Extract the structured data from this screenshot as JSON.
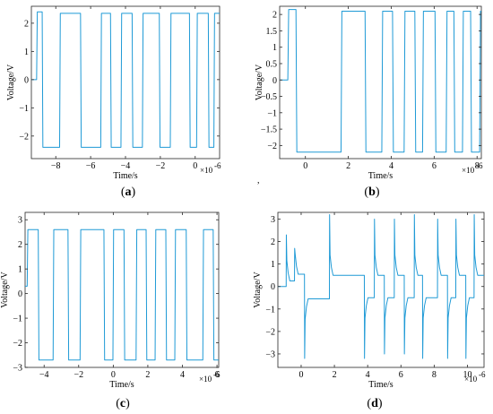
{
  "figure": {
    "center_mark": ","
  },
  "chart_data": [
    {
      "type": "line",
      "panel": "(a)",
      "caption_letter": "a",
      "xlabel": "Time/s",
      "ylabel": "Voltage/V",
      "x_exponent": "×10",
      "x_exponent_power": "-6",
      "xlim": [
        -9.4,
        1.4
      ],
      "ylim": [
        -2.8,
        2.6
      ],
      "xticks": [
        -8,
        -6,
        -4,
        -2,
        0
      ],
      "yticks": [
        -2,
        -1,
        0,
        1,
        2
      ],
      "grid": false,
      "color": "#1f9ad6",
      "series": [
        {
          "x": [
            -9.4,
            -9.1,
            -9.06,
            -8.78,
            -8.74,
            -7.78,
            -7.74,
            -6.58,
            -6.54,
            -5.42,
            -5.38,
            -4.86,
            -4.82,
            -4.26,
            -4.22,
            -3.62,
            -3.58,
            -3.03,
            -2.99,
            -2.06,
            -2.02,
            -1.43,
            -1.39,
            -0.33,
            -0.29,
            0.08,
            0.12,
            0.75,
            0.79,
            1.07,
            1.11,
            1.4
          ],
          "y": [
            0.0,
            0.0,
            2.4,
            2.4,
            -2.4,
            -2.4,
            2.35,
            2.35,
            -2.4,
            -2.4,
            2.35,
            2.35,
            -2.4,
            -2.4,
            2.35,
            2.35,
            -2.4,
            -2.4,
            2.35,
            2.35,
            -2.4,
            -2.4,
            2.35,
            2.35,
            -2.4,
            -2.4,
            2.35,
            2.35,
            -2.4,
            -2.4,
            2.35,
            2.35
          ]
        }
      ]
    },
    {
      "type": "line",
      "panel": "(b)",
      "caption_letter": "b",
      "xlabel": "Time/s",
      "ylabel": "Voltage/V",
      "x_exponent": "×10",
      "x_exponent_power": "-6",
      "xlim": [
        -1.2,
        8.2
      ],
      "ylim": [
        -2.4,
        2.25
      ],
      "xticks": [
        0,
        2,
        4,
        6,
        8
      ],
      "yticks": [
        -2,
        -1.5,
        -1,
        -0.5,
        0,
        0.5,
        1,
        1.5,
        2
      ],
      "grid": false,
      "color": "#1f9ad6",
      "series": [
        {
          "x": [
            -1.2,
            -0.82,
            -0.78,
            -0.44,
            -0.4,
            1.66,
            1.7,
            2.78,
            2.82,
            3.56,
            3.6,
            4.06,
            4.1,
            4.6,
            4.64,
            5.1,
            5.14,
            5.46,
            5.5,
            6.04,
            6.08,
            6.56,
            6.6,
            6.92,
            6.96,
            7.32,
            7.36,
            7.7,
            7.74,
            8.12,
            8.16,
            8.2
          ],
          "y": [
            0.0,
            0.0,
            2.15,
            2.15,
            -2.2,
            -2.2,
            2.1,
            2.1,
            -2.2,
            -2.2,
            2.1,
            2.1,
            -2.2,
            -2.2,
            2.1,
            2.1,
            -2.2,
            -2.2,
            2.1,
            2.1,
            -2.2,
            -2.2,
            2.1,
            2.1,
            -2.2,
            -2.2,
            2.1,
            2.1,
            -2.2,
            -2.2,
            2.1,
            2.1
          ]
        }
      ]
    },
    {
      "type": "line",
      "panel": "(c)",
      "caption_letter": "c",
      "xlabel": "Time/s",
      "ylabel": "Voltage/V",
      "x_exponent": "×10",
      "x_exponent_power": "-6",
      "xlim": [
        -5.1,
        6.1
      ],
      "ylim": [
        -3.0,
        3.3
      ],
      "xticks": [
        -4,
        -2,
        0,
        2,
        4,
        6
      ],
      "yticks": [
        -3,
        -2,
        -1,
        0,
        1,
        2,
        3
      ],
      "grid": false,
      "color": "#1f9ad6",
      "series": [
        {
          "x": [
            -5.1,
            -4.98,
            -4.94,
            -4.34,
            -4.3,
            -3.48,
            -3.44,
            -2.62,
            -2.58,
            -1.92,
            -1.88,
            -0.54,
            -0.5,
            -0.02,
            0.02,
            0.62,
            0.66,
            1.32,
            1.36,
            1.9,
            1.94,
            2.42,
            2.46,
            3.04,
            3.08,
            3.56,
            3.6,
            4.22,
            4.26,
            5.18,
            5.22,
            5.78,
            5.82,
            6.1
          ],
          "y": [
            0.3,
            0.3,
            2.6,
            2.6,
            -2.7,
            -2.7,
            2.6,
            2.6,
            -2.7,
            -2.7,
            2.6,
            2.6,
            -2.7,
            -2.7,
            2.6,
            2.6,
            -2.7,
            -2.7,
            2.6,
            2.6,
            -2.7,
            -2.7,
            2.6,
            2.6,
            -2.7,
            -2.7,
            2.6,
            2.6,
            -2.7,
            -2.7,
            2.6,
            2.6,
            -2.7,
            -2.7
          ]
        }
      ]
    },
    {
      "type": "line",
      "panel": "(d)",
      "caption_letter": "d",
      "xlabel": "Time/s",
      "ylabel": "Voltage/V",
      "x_exponent": "×10",
      "x_exponent_power": "-6",
      "xlim": [
        -1.4,
        11.0
      ],
      "ylim": [
        -3.6,
        3.3
      ],
      "xticks": [
        0,
        2,
        4,
        6,
        8,
        10
      ],
      "yticks": [
        -3,
        -2,
        -1,
        0,
        1,
        2,
        3
      ],
      "grid": false,
      "color": "#1f9ad6",
      "spikes": [
        {
          "t": -0.9,
          "dir": 1,
          "peak": 2.3,
          "settle": 0.25
        },
        {
          "t": -0.4,
          "dir": 1,
          "peak": 1.7,
          "settle": 0.55
        },
        {
          "t": 0.2,
          "dir": -1,
          "peak": 3.2,
          "settle": -0.55
        },
        {
          "t": 1.7,
          "dir": 1,
          "peak": 3.2,
          "settle": 0.5
        },
        {
          "t": 3.8,
          "dir": -1,
          "peak": 3.2,
          "settle": -0.5
        },
        {
          "t": 4.4,
          "dir": 1,
          "peak": 3.0,
          "settle": 0.5
        },
        {
          "t": 5.0,
          "dir": -1,
          "peak": 3.0,
          "settle": -0.5
        },
        {
          "t": 5.6,
          "dir": 1,
          "peak": 3.0,
          "settle": 0.5
        },
        {
          "t": 6.2,
          "dir": -1,
          "peak": 3.0,
          "settle": -0.5
        },
        {
          "t": 6.8,
          "dir": 1,
          "peak": 3.2,
          "settle": 0.5
        },
        {
          "t": 7.3,
          "dir": -1,
          "peak": 3.2,
          "settle": -0.5
        },
        {
          "t": 8.2,
          "dir": 1,
          "peak": 3.0,
          "settle": 0.5
        },
        {
          "t": 8.8,
          "dir": -1,
          "peak": 3.2,
          "settle": -0.5
        },
        {
          "t": 9.3,
          "dir": 1,
          "peak": 3.0,
          "settle": 0.5
        },
        {
          "t": 9.9,
          "dir": -1,
          "peak": 3.2,
          "settle": -0.5
        },
        {
          "t": 10.4,
          "dir": 1,
          "peak": 3.2,
          "settle": 0.5
        }
      ]
    }
  ]
}
